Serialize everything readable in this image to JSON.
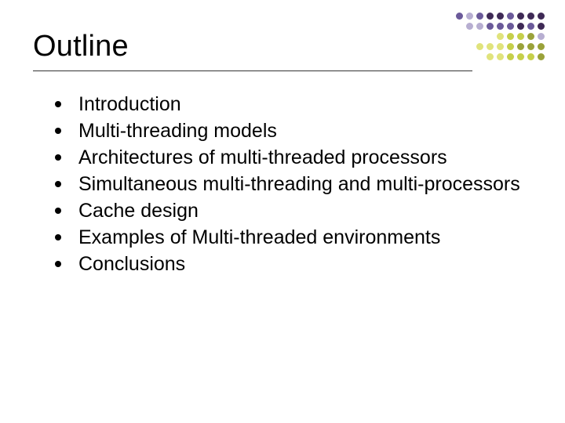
{
  "title": "Outline",
  "title_fontsize": 38,
  "title_color": "#000000",
  "title_underline_color": "#333333",
  "title_underline_width": 560,
  "background_color": "#ffffff",
  "body_fontsize": 25,
  "body_color": "#000000",
  "bullet_color": "#000000",
  "bullets": [
    "Introduction",
    "Multi-threading models",
    "Architectures of multi-threaded processors",
    "Simultaneous multi-threading and multi-processors",
    "Cache design",
    "Examples of Multi-threaded environments",
    "Conclusions"
  ],
  "corner_dots": {
    "palette": {
      "darkPurple": "#3f2a56",
      "medPurple": "#6b5a9a",
      "lightPurple": "#b7aed1",
      "olive": "#9aa23a",
      "yellowGreen": "#c5cf4a",
      "paleYellow": "#e0e37c"
    },
    "rows": [
      [
        "medPurple",
        "lightPurple",
        "medPurple",
        "darkPurple",
        "darkPurple",
        "medPurple",
        "darkPurple",
        "darkPurple",
        "darkPurple"
      ],
      [
        "lightPurple",
        "lightPurple",
        "medPurple",
        "medPurple",
        "medPurple",
        "darkPurple",
        "medPurple",
        "darkPurple"
      ],
      [
        "paleYellow",
        "yellowGreen",
        "yellowGreen",
        "olive",
        "lightPurple"
      ],
      [
        "paleYellow",
        "paleYellow",
        "paleYellow",
        "yellowGreen",
        "olive",
        "olive",
        "olive"
      ],
      [
        "paleYellow",
        "paleYellow",
        "yellowGreen",
        "yellowGreen",
        "yellowGreen",
        "olive"
      ]
    ],
    "dot_size": 9,
    "gap": 4
  }
}
